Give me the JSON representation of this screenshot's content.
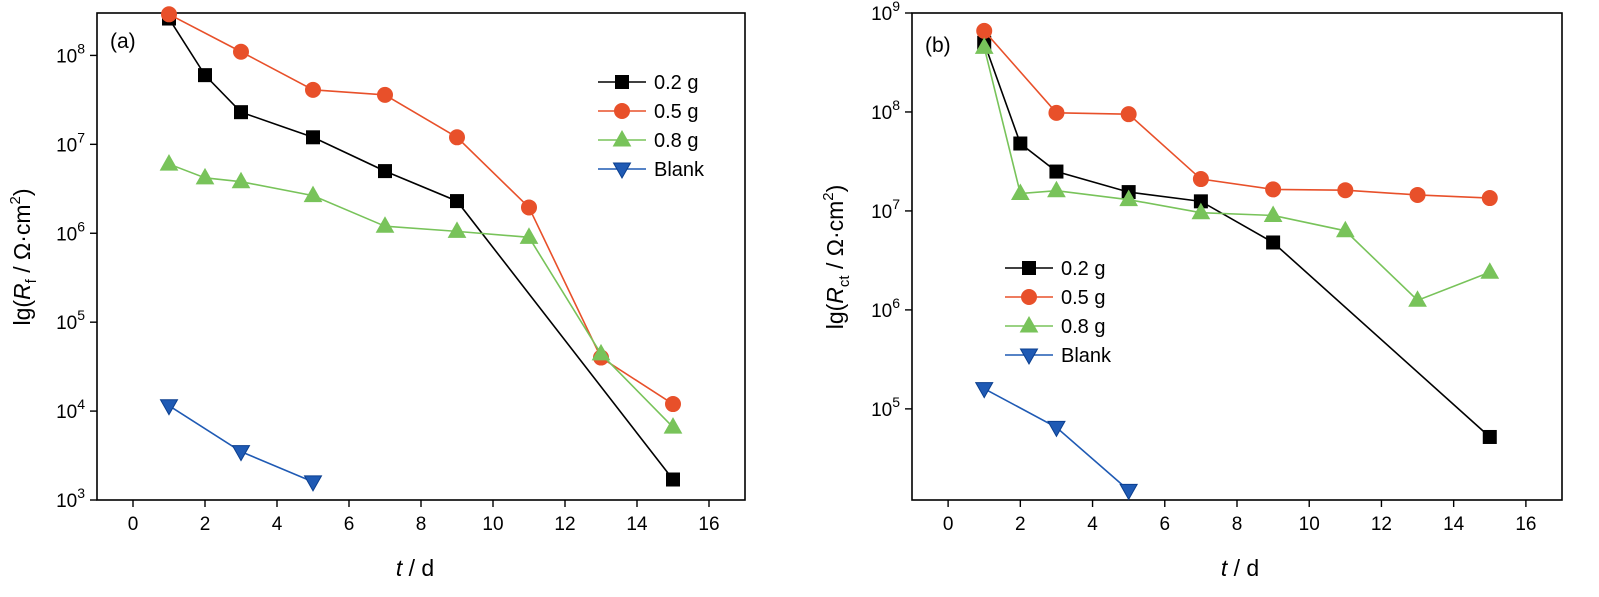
{
  "colors": {
    "s02": "#000000",
    "s05": "#e8502a",
    "s08": "#78c35a",
    "blank": "#1f5ab4",
    "edge_blank": "#0b3f8f"
  },
  "chart_data": [
    {
      "type": "line",
      "panel_label": "(a)",
      "xlabel": {
        "main": "t",
        "rest": " / d"
      },
      "ylabel": {
        "pre": "lg(",
        "main": "R",
        "sub": "f",
        "rest": " / Ω·cm",
        "sup": "2",
        "post": ")"
      },
      "xlim": [
        -1,
        17
      ],
      "ylim": [
        1000,
        300000000
      ],
      "yscale": "log",
      "xticks": [
        0,
        2,
        4,
        6,
        8,
        10,
        12,
        14,
        16
      ],
      "yticks": [
        {
          "base": "10",
          "exp": "3"
        },
        {
          "base": "10",
          "exp": "4"
        },
        {
          "base": "10",
          "exp": "5"
        },
        {
          "base": "10",
          "exp": "6"
        },
        {
          "base": "10",
          "exp": "7"
        },
        {
          "base": "10",
          "exp": "8"
        }
      ],
      "legend": "top-right",
      "series": [
        {
          "name": "0.2 g",
          "marker": "square",
          "color_key": "s02",
          "x": [
            1,
            2,
            3,
            5,
            7,
            9,
            15
          ],
          "y": [
            260000000,
            60000000,
            23000000,
            12000000,
            5000000,
            2300000,
            1700
          ]
        },
        {
          "name": "0.5 g",
          "marker": "circle",
          "color_key": "s05",
          "x": [
            1,
            3,
            5,
            7,
            9,
            11,
            13,
            15
          ],
          "y": [
            290000000,
            110000000,
            41000000,
            36000000,
            12000000,
            1950000,
            40000,
            12000
          ]
        },
        {
          "name": "0.8 g",
          "marker": "triangle-up",
          "color_key": "s08",
          "x": [
            1,
            2,
            3,
            5,
            7,
            9,
            11,
            13,
            15
          ],
          "y": [
            6000000,
            4200000,
            3800000,
            2650000,
            1200000,
            1050000,
            900000,
            44000,
            6600
          ]
        },
        {
          "name": "Blank",
          "marker": "triangle-down",
          "color_key": "blank",
          "x": [
            1,
            3,
            5
          ],
          "y": [
            11500,
            3500,
            1600
          ]
        }
      ]
    },
    {
      "type": "line",
      "panel_label": "(b)",
      "xlabel": {
        "main": "t",
        "rest": " / d"
      },
      "ylabel": {
        "pre": "lg(",
        "main": "R",
        "sub": "ct",
        "rest": " / Ω·cm",
        "sup": "2",
        "post": ")"
      },
      "xlim": [
        -1,
        17
      ],
      "ylim": [
        12000,
        1000000000
      ],
      "yscale": "log",
      "xticks": [
        0,
        2,
        4,
        6,
        8,
        10,
        12,
        14,
        16
      ],
      "yticks": [
        {
          "base": "10",
          "exp": "5"
        },
        {
          "base": "10",
          "exp": "6"
        },
        {
          "base": "10",
          "exp": "7"
        },
        {
          "base": "10",
          "exp": "8"
        },
        {
          "base": "10",
          "exp": "9"
        }
      ],
      "legend": "center-left",
      "series": [
        {
          "name": "0.2 g",
          "marker": "square",
          "color_key": "s02",
          "x": [
            1,
            2,
            3,
            5,
            7,
            9,
            15
          ],
          "y": [
            500000000,
            48000000,
            25000000,
            15500000,
            12500000,
            4800000,
            52000
          ]
        },
        {
          "name": "0.5 g",
          "marker": "circle",
          "color_key": "s05",
          "x": [
            1,
            3,
            5,
            7,
            9,
            11,
            13,
            15
          ],
          "y": [
            660000000,
            98000000,
            95000000,
            21000000,
            16500000,
            16200000,
            14500000,
            13500000
          ]
        },
        {
          "name": "0.8 g",
          "marker": "triangle-up",
          "color_key": "s08",
          "x": [
            1,
            2,
            3,
            5,
            7,
            9,
            11,
            13,
            15
          ],
          "y": [
            450000000,
            15000000,
            16000000,
            13000000,
            9600000,
            9000000,
            6300000,
            1250000,
            2400000
          ]
        },
        {
          "name": "Blank",
          "marker": "triangle-down",
          "color_key": "blank",
          "x": [
            1,
            3,
            5
          ],
          "y": [
            160000,
            65000,
            15000
          ]
        }
      ]
    }
  ]
}
